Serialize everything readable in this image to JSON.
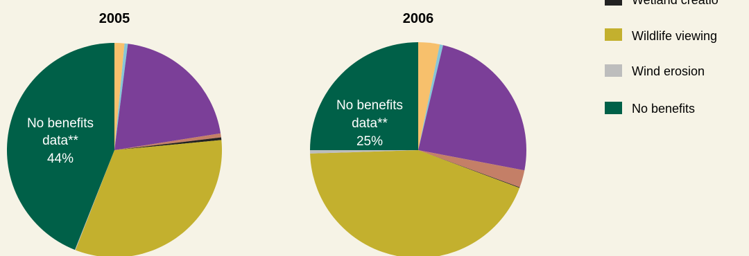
{
  "chart_data": [
    {
      "type": "pie",
      "title": "2005",
      "slices": [
        {
          "category": "cat-orange",
          "value": 1.5,
          "color": "#f7c06c"
        },
        {
          "category": "cat-lightblue",
          "value": 0.5,
          "color": "#86c5d8"
        },
        {
          "category": "cat-purple",
          "value": 20.5,
          "color": "#7b3f98"
        },
        {
          "category": "cat-terracotta",
          "value": 0.6,
          "color": "#c47f67"
        },
        {
          "category": "Wetland creation",
          "value": 0.4,
          "color": "#222222"
        },
        {
          "category": "Wildlife viewing",
          "value": 32.4,
          "color": "#c3b02e"
        },
        {
          "category": "Wind erosion",
          "value": 0.1,
          "color": "#bdbdbd"
        },
        {
          "category": "No benefits",
          "value": 44,
          "color": "#006048"
        }
      ],
      "label": {
        "line1": "No benefits",
        "line2": "data**",
        "line3": "44%"
      }
    },
    {
      "type": "pie",
      "title": "2006",
      "slices": [
        {
          "category": "cat-orange",
          "value": 3.2,
          "color": "#f7c06c"
        },
        {
          "category": "cat-lightblue",
          "value": 0.5,
          "color": "#86c5d8"
        },
        {
          "category": "cat-purple",
          "value": 24.3,
          "color": "#7b3f98"
        },
        {
          "category": "cat-terracotta",
          "value": 2.6,
          "color": "#c47f67"
        },
        {
          "category": "Wetland creation",
          "value": 0.1,
          "color": "#222222"
        },
        {
          "category": "Wildlife viewing",
          "value": 43.8,
          "color": "#c3b02e"
        },
        {
          "category": "Wind erosion",
          "value": 0.5,
          "color": "#bdbdbd"
        },
        {
          "category": "No benefits",
          "value": 25,
          "color": "#006048"
        }
      ],
      "label": {
        "line1": "No benefits",
        "line2": "data**",
        "line3": "25%"
      }
    }
  ],
  "legend": [
    {
      "label": "Wetland creatio",
      "color": "#222222"
    },
    {
      "label": "Wildlife viewing",
      "color": "#c3b02e"
    },
    {
      "label": "Wind erosion",
      "color": "#bdbdbd"
    },
    {
      "label": "No benefits",
      "color": "#006048"
    }
  ]
}
